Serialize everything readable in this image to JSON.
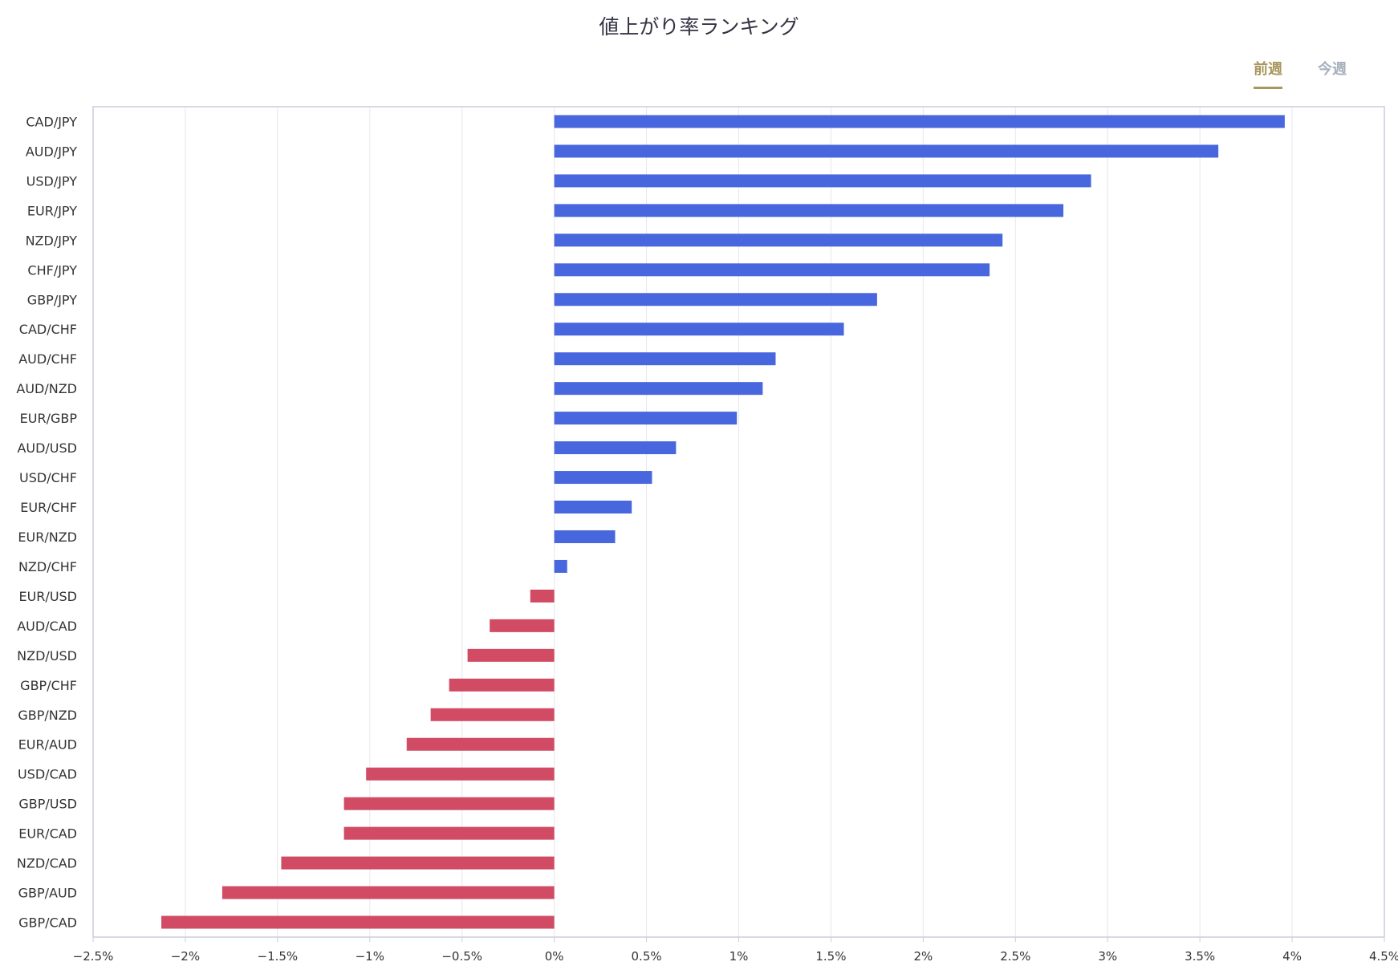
{
  "tabs": [
    {
      "label": "前週",
      "active": true
    },
    {
      "label": "今週",
      "active": false
    }
  ],
  "colors": {
    "positive": "#4866dd",
    "negative": "#d04b63",
    "grid": "#e6e6ee",
    "frame": "#ccccdd"
  },
  "chart_data": {
    "type": "bar",
    "orientation": "horizontal",
    "title": "値上がり率ランキング",
    "xlabel": "",
    "ylabel": "",
    "xlim": [
      -2.5,
      4.5
    ],
    "x_ticks": [
      -2.5,
      -2,
      -1.5,
      -1,
      -0.5,
      0,
      0.5,
      1,
      1.5,
      2,
      2.5,
      3,
      3.5,
      4,
      4.5
    ],
    "tick_labels": [
      "−2.5%",
      "−2%",
      "−1.5%",
      "−1%",
      "−0.5%",
      "0%",
      "0.5%",
      "1%",
      "1.5%",
      "2%",
      "2.5%",
      "3%",
      "3.5%",
      "4%",
      "4.5%"
    ],
    "grid": true,
    "categories": [
      "CAD/JPY",
      "AUD/JPY",
      "USD/JPY",
      "EUR/JPY",
      "NZD/JPY",
      "CHF/JPY",
      "GBP/JPY",
      "CAD/CHF",
      "AUD/CHF",
      "AUD/NZD",
      "EUR/GBP",
      "AUD/USD",
      "USD/CHF",
      "EUR/CHF",
      "EUR/NZD",
      "NZD/CHF",
      "EUR/USD",
      "AUD/CAD",
      "NZD/USD",
      "GBP/CHF",
      "GBP/NZD",
      "EUR/AUD",
      "USD/CAD",
      "GBP/USD",
      "EUR/CAD",
      "NZD/CAD",
      "GBP/AUD",
      "GBP/CAD"
    ],
    "values": [
      3.96,
      3.6,
      2.91,
      2.76,
      2.43,
      2.36,
      1.75,
      1.57,
      1.2,
      1.13,
      0.99,
      0.66,
      0.53,
      0.42,
      0.33,
      0.07,
      -0.13,
      -0.35,
      -0.47,
      -0.57,
      -0.67,
      -0.8,
      -1.02,
      -1.14,
      -1.14,
      -1.48,
      -1.8,
      -2.13
    ]
  }
}
